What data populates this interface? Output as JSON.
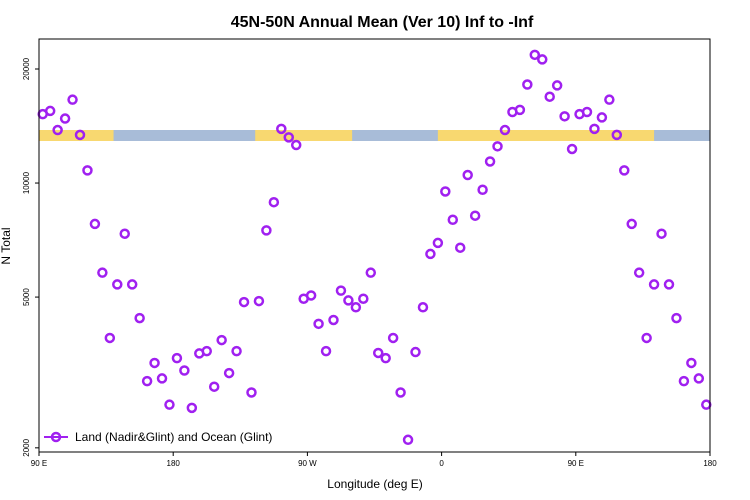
{
  "chart_data": {
    "type": "scatter",
    "title": "45N-50N Annual Mean (Ver 10)   Inf to -Inf",
    "xlabel": "Longitude (deg E)",
    "ylabel": "N Total",
    "xlim": [
      0,
      360
    ],
    "ylim_log": [
      1950,
      24000
    ],
    "x_ticks": [
      {
        "value": 0,
        "label": "90 E"
      },
      {
        "value": 72,
        "label": "180"
      },
      {
        "value": 144,
        "label": "90 W"
      },
      {
        "value": 216,
        "label": "0"
      },
      {
        "value": 288,
        "label": "90 E"
      },
      {
        "value": 360,
        "label": "180"
      }
    ],
    "y_ticks": [
      {
        "value": 2000,
        "label": "2000"
      },
      {
        "value": 5000,
        "label": "5000"
      },
      {
        "value": 10000,
        "label": "10000"
      },
      {
        "value": 20000,
        "label": "20000"
      }
    ],
    "legend": {
      "label": "Land (Nadir&Glint) and Ocean (Glint)",
      "position": "bottom-left"
    },
    "marker_color": "#a020f0",
    "land_color": "#f8d870",
    "ocean_color": "#a8bcd8",
    "land_segments_x": [
      [
        0,
        40
      ],
      [
        116,
        168
      ],
      [
        214,
        330
      ]
    ],
    "series": [
      {
        "name": "Land (Nadir&Glint) and Ocean (Glint)",
        "points": [
          [
            2,
            15200
          ],
          [
            6,
            15500
          ],
          [
            10,
            13800
          ],
          [
            14,
            14800
          ],
          [
            18,
            16600
          ],
          [
            22,
            13400
          ],
          [
            26,
            10800
          ],
          [
            30,
            7800
          ],
          [
            34,
            5800
          ],
          [
            38,
            3900
          ],
          [
            42,
            5400
          ],
          [
            46,
            7350
          ],
          [
            50,
            5400
          ],
          [
            54,
            4400
          ],
          [
            58,
            3000
          ],
          [
            62,
            3350
          ],
          [
            66,
            3050
          ],
          [
            70,
            2600
          ],
          [
            74,
            3450
          ],
          [
            78,
            3200
          ],
          [
            82,
            2550
          ],
          [
            86,
            3550
          ],
          [
            90,
            3600
          ],
          [
            94,
            2900
          ],
          [
            98,
            3850
          ],
          [
            102,
            3150
          ],
          [
            106,
            3600
          ],
          [
            110,
            4850
          ],
          [
            114,
            2800
          ],
          [
            118,
            4880
          ],
          [
            122,
            7500
          ],
          [
            126,
            8900
          ],
          [
            130,
            13900
          ],
          [
            134,
            13200
          ],
          [
            138,
            12600
          ],
          [
            142,
            4950
          ],
          [
            146,
            5050
          ],
          [
            150,
            4250
          ],
          [
            154,
            3600
          ],
          [
            158,
            4350
          ],
          [
            162,
            5200
          ],
          [
            166,
            4900
          ],
          [
            170,
            4700
          ],
          [
            174,
            4950
          ],
          [
            178,
            5800
          ],
          [
            182,
            3560
          ],
          [
            186,
            3450
          ],
          [
            190,
            3900
          ],
          [
            194,
            2800
          ],
          [
            198,
            2100
          ],
          [
            202,
            3580
          ],
          [
            206,
            4700
          ],
          [
            210,
            6500
          ],
          [
            214,
            6950
          ],
          [
            218,
            9500
          ],
          [
            222,
            8000
          ],
          [
            226,
            6750
          ],
          [
            230,
            10500
          ],
          [
            234,
            8200
          ],
          [
            238,
            9600
          ],
          [
            242,
            11400
          ],
          [
            246,
            12500
          ],
          [
            250,
            13800
          ],
          [
            254,
            15400
          ],
          [
            258,
            15600
          ],
          [
            262,
            18200
          ],
          [
            266,
            21800
          ],
          [
            270,
            21200
          ],
          [
            274,
            16900
          ],
          [
            278,
            18100
          ],
          [
            282,
            15000
          ],
          [
            286,
            12300
          ],
          [
            290,
            15200
          ],
          [
            294,
            15400
          ],
          [
            298,
            13900
          ],
          [
            302,
            14900
          ],
          [
            306,
            16600
          ],
          [
            310,
            13400
          ],
          [
            314,
            10800
          ],
          [
            318,
            7800
          ],
          [
            322,
            5800
          ],
          [
            326,
            3900
          ],
          [
            330,
            5400
          ],
          [
            334,
            7350
          ],
          [
            338,
            5400
          ],
          [
            342,
            4400
          ],
          [
            346,
            3000
          ],
          [
            350,
            3350
          ],
          [
            354,
            3050
          ],
          [
            358,
            2600
          ]
        ]
      }
    ]
  }
}
